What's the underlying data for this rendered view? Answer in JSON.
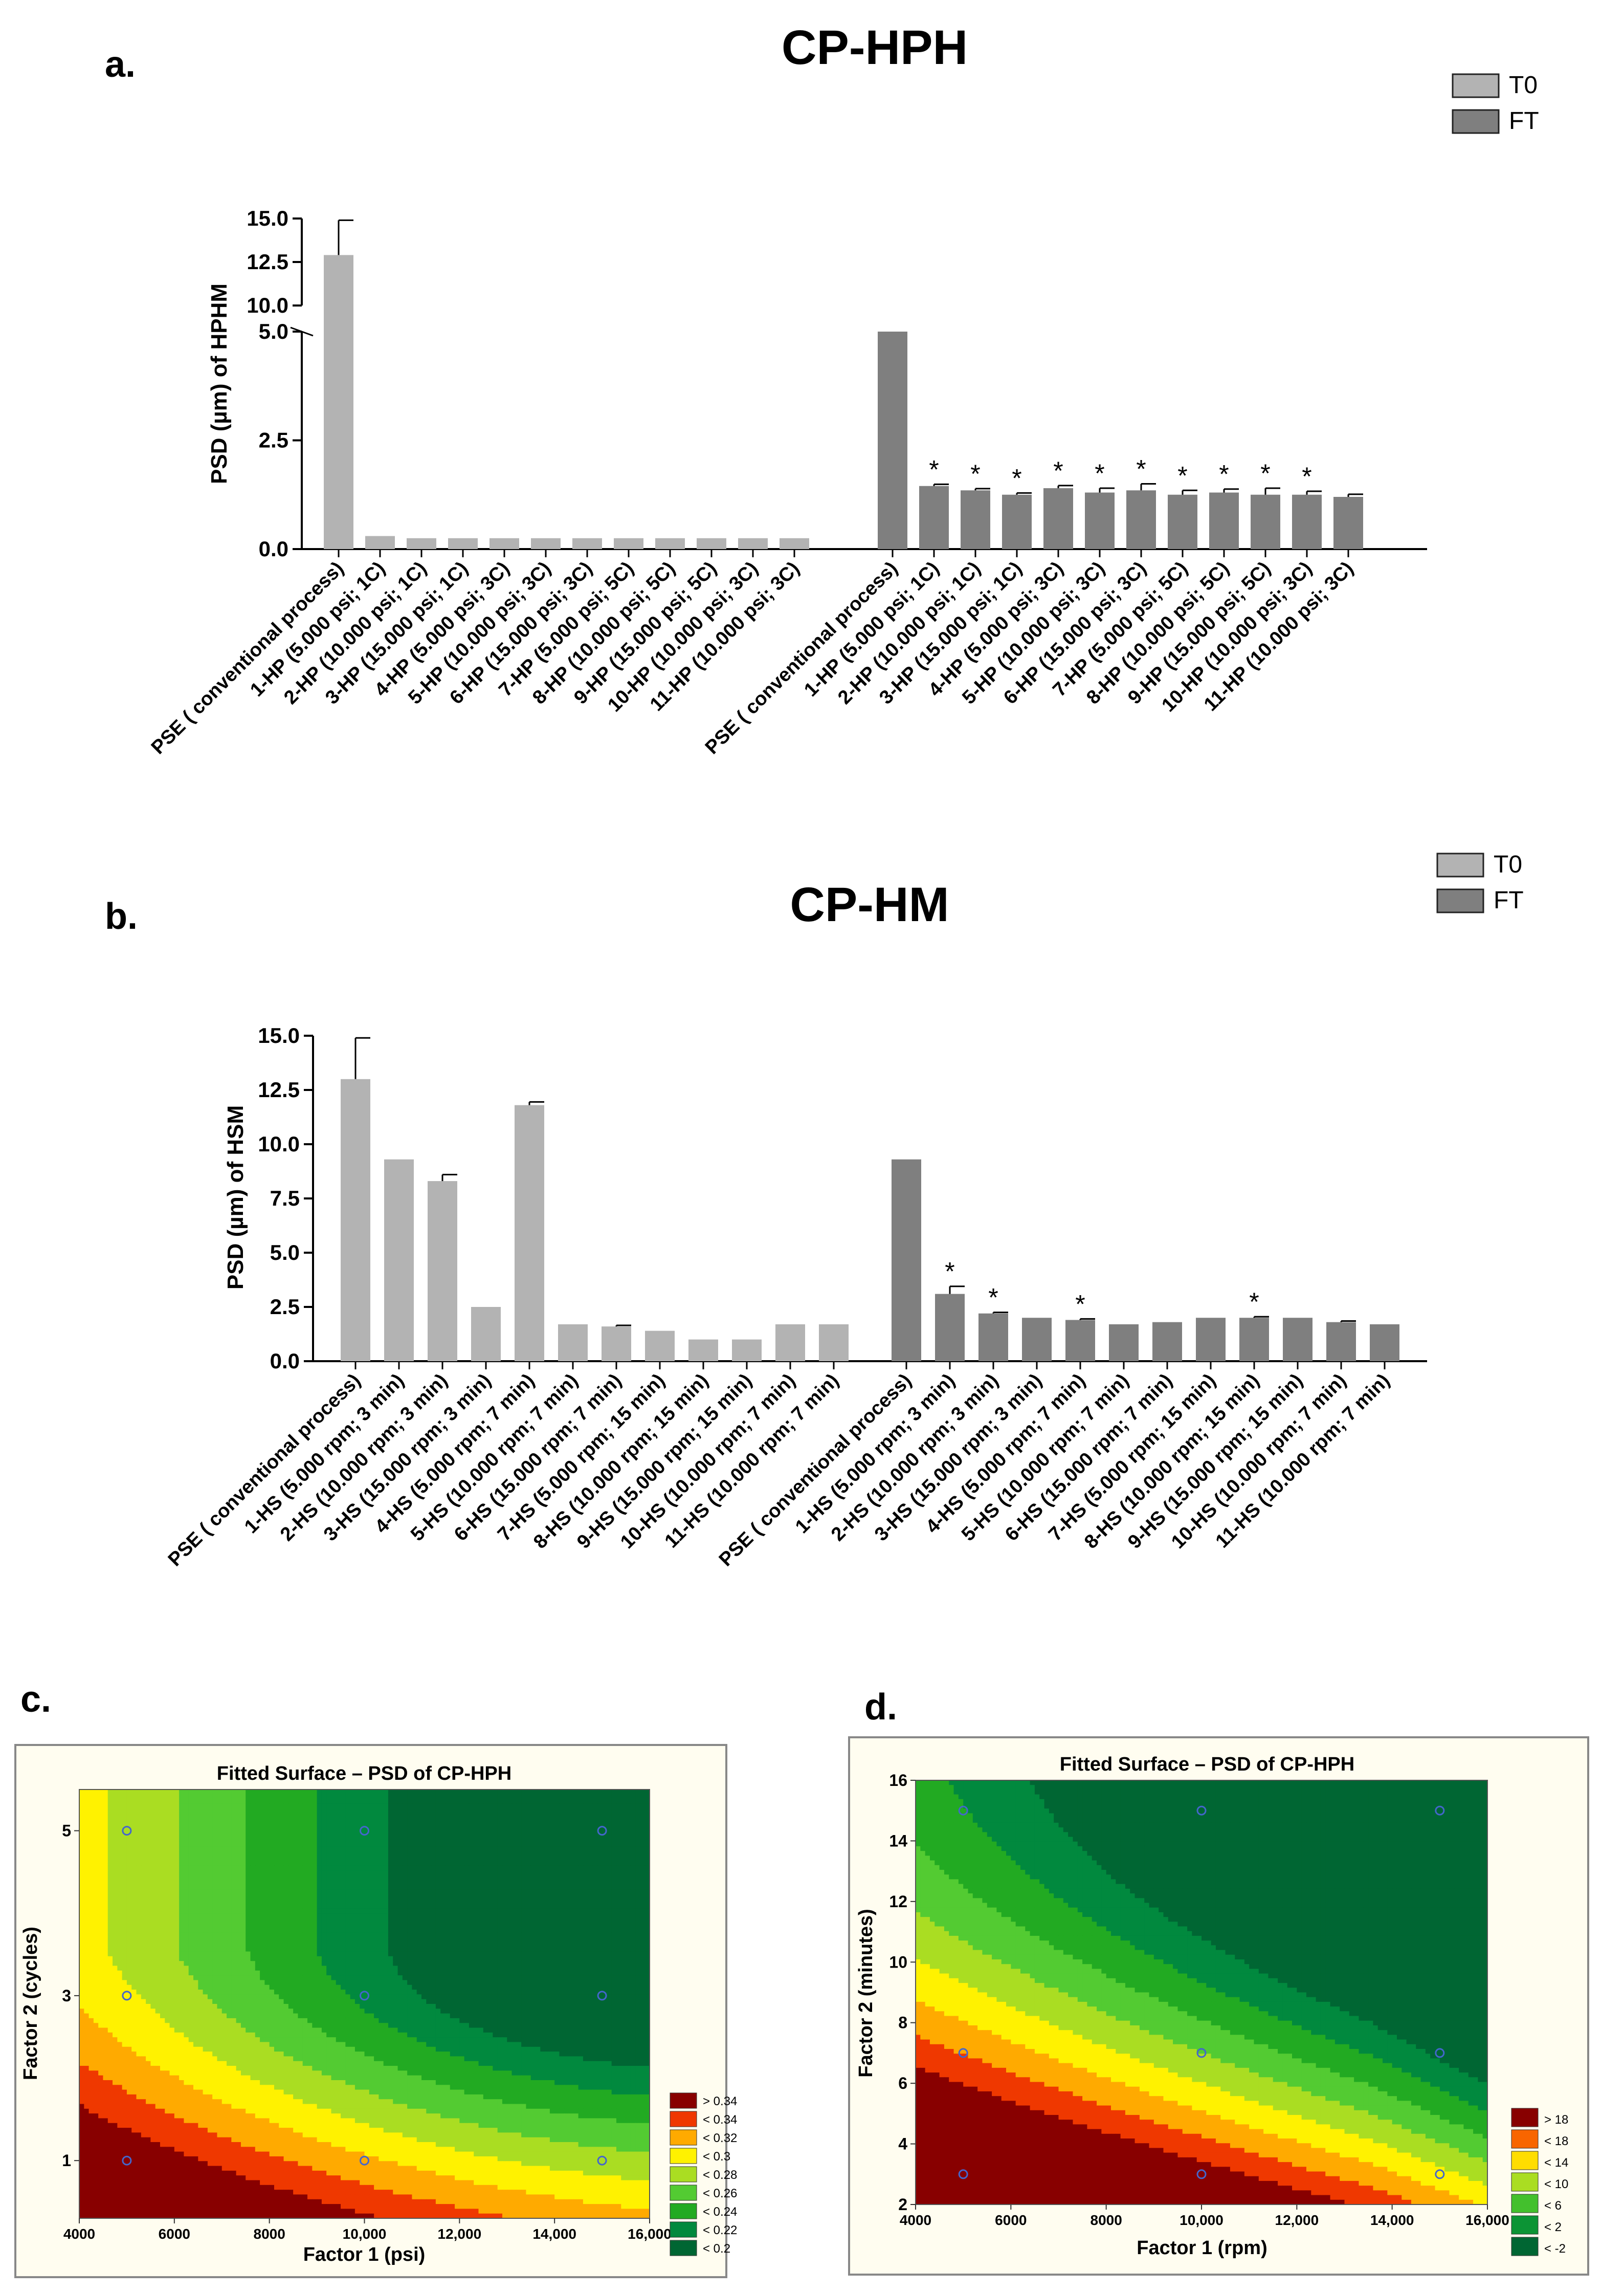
{
  "panel_letters": {
    "a": "a.",
    "b": "b.",
    "c": "c.",
    "d": "d."
  },
  "colors": {
    "T0": "#b3b3b3",
    "FT": "#7f7f7f",
    "frame": "#fffdf0",
    "contour": [
      "#006633",
      "#00883f",
      "#22aa22",
      "#55cc33",
      "#aadd22",
      "#ffff00",
      "#ffcc00",
      "#ff8800",
      "#ee3300",
      "#cc0000",
      "#880000"
    ]
  },
  "chart_data": [
    {
      "id": "a",
      "type": "bar",
      "title": "CP-HPH",
      "ylabel": "PSD (µm) of HPHM",
      "legend": [
        "T0",
        "FT"
      ],
      "legend_position": "top-right",
      "axis_break": [
        5.0,
        10.0
      ],
      "ylim": [
        0,
        15
      ],
      "yticks": [
        "0.0",
        "2.5",
        "5.0",
        "10.0",
        "12.5",
        "15.0"
      ],
      "categories": [
        "PSE ( conventional process)",
        "1-HP (5.000 psi; 1C)",
        "2-HP (10.000 psi; 1C)",
        "3-HP (15.000 psi; 1C)",
        "4-HP (5.000 psi; 3C)",
        "5-HP (10.000 psi; 3C)",
        "6-HP (15.000 psi; 3C)",
        "7-HP (5.000 psi; 5C)",
        "8-HP (10.000 psi; 5C)",
        "9-HP (15.000 psi; 5C)",
        "10-HP (10.000 psi; 3C)",
        "11-HP (10.000 psi; 3C)"
      ],
      "series": [
        {
          "name": "T0",
          "values": [
            12.9,
            0.3,
            0.25,
            0.25,
            0.25,
            0.25,
            0.25,
            0.25,
            0.25,
            0.25,
            0.25,
            0.25
          ],
          "errors": [
            2.0,
            0,
            0,
            0,
            0,
            0,
            0,
            0,
            0,
            0,
            0,
            0
          ],
          "stars": []
        },
        {
          "name": "FT",
          "values": [
            5.0,
            1.45,
            1.35,
            1.25,
            1.4,
            1.3,
            1.35,
            1.25,
            1.3,
            1.25,
            1.25,
            1.2
          ],
          "errors": [
            0,
            0.04,
            0.04,
            0.04,
            0.06,
            0.1,
            0.15,
            0.1,
            0.08,
            0.15,
            0.08,
            0.06
          ],
          "stars": [
            1,
            2,
            3,
            4,
            5,
            6,
            7,
            8,
            9,
            10
          ]
        }
      ]
    },
    {
      "id": "b",
      "type": "bar",
      "title": "CP-HM",
      "ylabel": "PSD (µm) of HSM",
      "legend": [
        "T0",
        "FT"
      ],
      "legend_position": "top-right",
      "ylim": [
        0,
        15
      ],
      "yticks": [
        "0.0",
        "2.5",
        "5.0",
        "7.5",
        "10.0",
        "12.5",
        "15.0"
      ],
      "categories": [
        "PSE ( conventional process)",
        "1-HS (5.000 rpm; 3 min)",
        "2-HS (10.000 rpm; 3 min)",
        "3-HS (15.000 rpm; 3 min)",
        "4-HS (5.000 rpm; 7 min)",
        "5-HS (10.000 rpm; 7 min)",
        "6-HS (15.000 rpm; 7 min)",
        "7-HS (5.000 rpm; 15 min)",
        "8-HS (10.000 rpm; 15 min)",
        "9-HS (15.000 rpm; 15 min)",
        "10-HS (10.000 rpm; 7 min)",
        "11-HS (10.000 rpm; 7 min)"
      ],
      "series": [
        {
          "name": "T0",
          "values": [
            13.0,
            9.3,
            8.3,
            2.5,
            11.8,
            1.7,
            1.6,
            1.4,
            1.0,
            1.0,
            1.7,
            1.7
          ],
          "errors": [
            1.9,
            0,
            0.3,
            0,
            0.15,
            0,
            0.05,
            0,
            0,
            0,
            0,
            0
          ],
          "stars": []
        },
        {
          "name": "FT",
          "values": [
            9.3,
            3.1,
            2.2,
            2.0,
            1.9,
            1.7,
            1.8,
            2.0,
            2.0,
            2.0,
            1.8,
            1.7
          ],
          "errors": [
            0,
            0.35,
            0.05,
            0,
            0.05,
            0,
            0,
            0,
            0.05,
            0,
            0.05,
            0
          ],
          "stars": [
            1,
            2,
            4,
            8
          ]
        }
      ]
    },
    {
      "id": "c",
      "type": "heatmap",
      "title": "Fitted Surface – PSD of CP-HPH",
      "xlabel": "Factor 1 (psi)",
      "ylabel": "Factor 2 (cycles)",
      "xlim": [
        4000,
        16000
      ],
      "ylim": [
        0.3,
        5.5
      ],
      "xticks": [
        "4000",
        "6000",
        "8000",
        "10,000",
        "12,000",
        "14,000",
        "16,000"
      ],
      "yticks": [
        "1",
        "3",
        "5"
      ],
      "legend": [
        "> 0.34",
        "< 0.34",
        "< 0.32",
        "< 0.3",
        "< 0.28",
        "< 0.26",
        "< 0.24",
        "< 0.22",
        "< 0.2"
      ],
      "design_points": [
        [
          5000,
          1
        ],
        [
          10000,
          1
        ],
        [
          15000,
          1
        ],
        [
          5000,
          3
        ],
        [
          10000,
          3
        ],
        [
          15000,
          3
        ],
        [
          5000,
          5
        ],
        [
          10000,
          5
        ],
        [
          15000,
          5
        ]
      ]
    },
    {
      "id": "d",
      "type": "heatmap",
      "title": "Fitted Surface – PSD of CP-HPH",
      "xlabel": "Factor 1 (rpm)",
      "ylabel": "Factor 2 (minutes)",
      "xlim": [
        4000,
        16000
      ],
      "ylim": [
        2,
        16
      ],
      "xticks": [
        "4000",
        "6000",
        "8000",
        "10,000",
        "12,000",
        "14,000",
        "16,000"
      ],
      "yticks": [
        "2",
        "4",
        "6",
        "8",
        "10",
        "12",
        "14",
        "16"
      ],
      "legend": [
        "> 18",
        "< 18",
        "< 14",
        "< 10",
        "< 6",
        "< 2",
        "< -2"
      ],
      "design_points": [
        [
          5000,
          3
        ],
        [
          10000,
          3
        ],
        [
          15000,
          3
        ],
        [
          5000,
          7
        ],
        [
          10000,
          7
        ],
        [
          15000,
          7
        ],
        [
          5000,
          15
        ],
        [
          10000,
          15
        ],
        [
          15000,
          15
        ]
      ]
    }
  ]
}
